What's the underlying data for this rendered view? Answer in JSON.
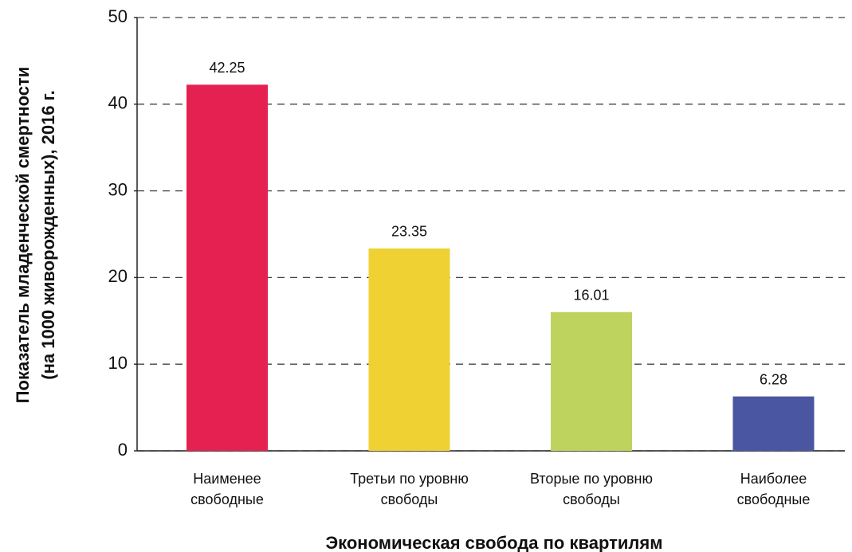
{
  "chart_data": {
    "type": "bar",
    "y_label": [
      "Показатель младенческой смертности",
      "(на 1000 живорожденных), 2016 г."
    ],
    "x_label": "Экономическая свобода по квартилям",
    "categories": [
      [
        "Наименее",
        "свободные"
      ],
      [
        "Третьи по уровню",
        "свободы"
      ],
      [
        "Вторые по уровню",
        "свободы"
      ],
      [
        "Наиболее",
        "свободные"
      ]
    ],
    "values": [
      42.25,
      23.35,
      16.01,
      6.28
    ],
    "colors": [
      "#e52152",
      "#efd133",
      "#bed35e",
      "#4a56a1"
    ],
    "ylim": [
      0,
      50
    ],
    "yticks": [
      0,
      10,
      20,
      30,
      40,
      50
    ],
    "grid": true
  }
}
